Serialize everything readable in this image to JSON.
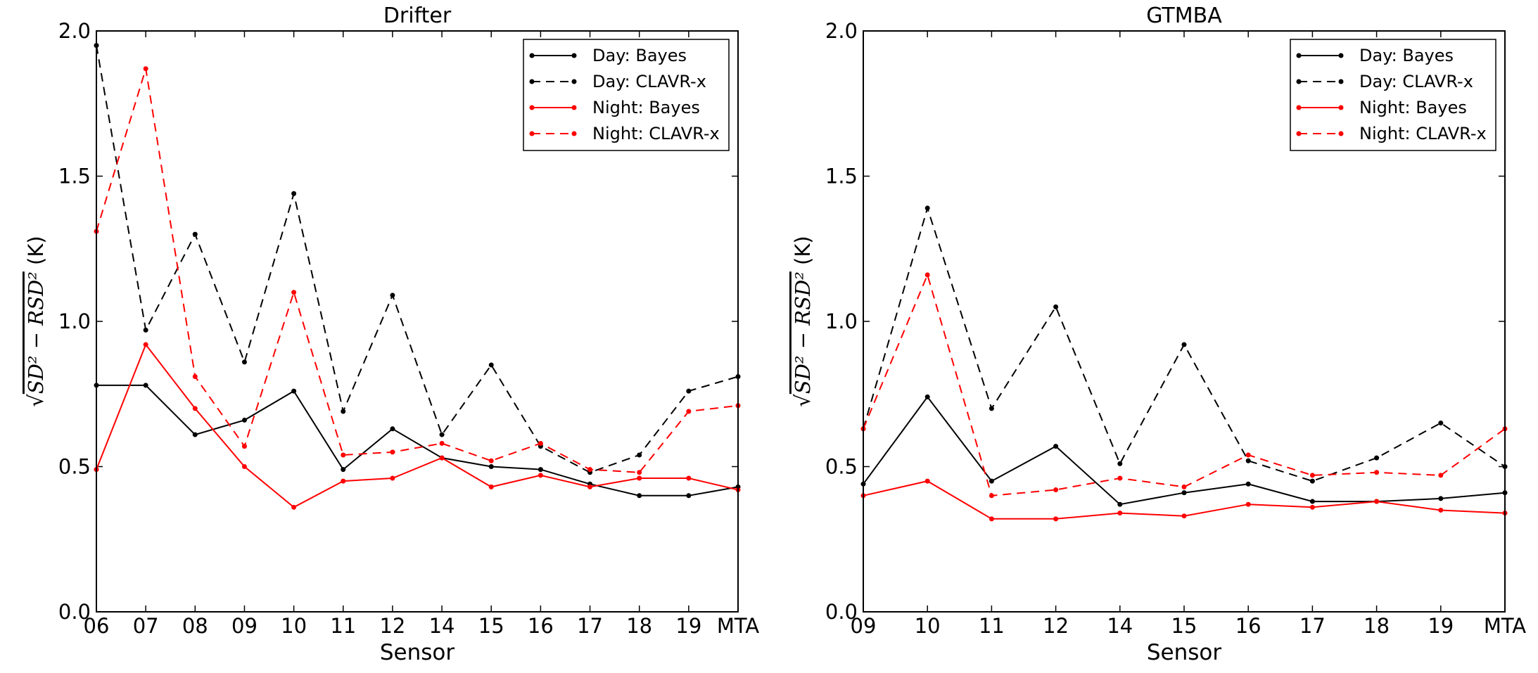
{
  "chart_data": [
    {
      "type": "line",
      "title": "Drifter",
      "xlabel": "Sensor",
      "ylabel": "√SD² − RSD² (K)",
      "ylabel_parts": {
        "lead": "√",
        "expr": "SD² − RSD²",
        "unit": " (K)"
      },
      "ylim": [
        0.0,
        2.0
      ],
      "yticks": [
        "0.0",
        "0.5",
        "1.0",
        "1.5",
        "2.0"
      ],
      "ytick_values": [
        0.0,
        0.5,
        1.0,
        1.5,
        2.0
      ],
      "categories": [
        "06",
        "07",
        "08",
        "09",
        "10",
        "11",
        "12",
        "14",
        "15",
        "16",
        "17",
        "18",
        "19",
        "MTA"
      ],
      "legend_position": "top-right",
      "series": [
        {
          "name": "Day: Bayes",
          "color": "#000000",
          "dashed": false,
          "values": [
            0.78,
            0.78,
            0.61,
            0.66,
            0.76,
            0.49,
            0.63,
            0.53,
            0.5,
            0.49,
            0.44,
            0.4,
            0.4,
            0.43
          ]
        },
        {
          "name": "Day: CLAVR-x",
          "color": "#000000",
          "dashed": true,
          "values": [
            1.95,
            0.97,
            1.3,
            0.86,
            1.44,
            0.69,
            1.09,
            0.61,
            0.85,
            0.57,
            0.48,
            0.54,
            0.76,
            0.81
          ]
        },
        {
          "name": "Night: Bayes",
          "color": "#ff0000",
          "dashed": false,
          "values": [
            0.49,
            0.92,
            0.7,
            0.5,
            0.36,
            0.45,
            0.46,
            0.53,
            0.43,
            0.47,
            0.43,
            0.46,
            0.46,
            0.42
          ]
        },
        {
          "name": "Night: CLAVR-x",
          "color": "#ff0000",
          "dashed": true,
          "values": [
            1.31,
            1.87,
            0.81,
            0.57,
            1.1,
            0.54,
            0.55,
            0.58,
            0.52,
            0.58,
            0.49,
            0.48,
            0.69,
            0.71
          ]
        }
      ]
    },
    {
      "type": "line",
      "title": "GTMBA",
      "xlabel": "Sensor",
      "ylabel": "√SD² − RSD² (K)",
      "ylabel_parts": {
        "lead": "√",
        "expr": "SD² − RSD²",
        "unit": " (K)"
      },
      "ylim": [
        0.0,
        2.0
      ],
      "yticks": [
        "0.0",
        "0.5",
        "1.0",
        "1.5",
        "2.0"
      ],
      "ytick_values": [
        0.0,
        0.5,
        1.0,
        1.5,
        2.0
      ],
      "categories": [
        "09",
        "10",
        "11",
        "12",
        "14",
        "15",
        "16",
        "17",
        "18",
        "19",
        "MTA"
      ],
      "legend_position": "top-right",
      "series": [
        {
          "name": "Day: Bayes",
          "color": "#000000",
          "dashed": false,
          "values": [
            0.44,
            0.74,
            0.45,
            0.57,
            0.37,
            0.41,
            0.44,
            0.38,
            0.38,
            0.39,
            0.41
          ]
        },
        {
          "name": "Day: CLAVR-x",
          "color": "#000000",
          "dashed": true,
          "values": [
            0.63,
            1.39,
            0.7,
            1.05,
            0.51,
            0.92,
            0.52,
            0.45,
            0.53,
            0.65,
            0.5
          ]
        },
        {
          "name": "Night: Bayes",
          "color": "#ff0000",
          "dashed": false,
          "values": [
            0.4,
            0.45,
            0.32,
            0.32,
            0.34,
            0.33,
            0.37,
            0.36,
            0.38,
            0.35,
            0.34
          ]
        },
        {
          "name": "Night: CLAVR-x",
          "color": "#ff0000",
          "dashed": true,
          "values": [
            0.63,
            1.16,
            0.4,
            0.42,
            0.46,
            0.43,
            0.54,
            0.47,
            0.48,
            0.47,
            0.63
          ]
        }
      ]
    }
  ]
}
